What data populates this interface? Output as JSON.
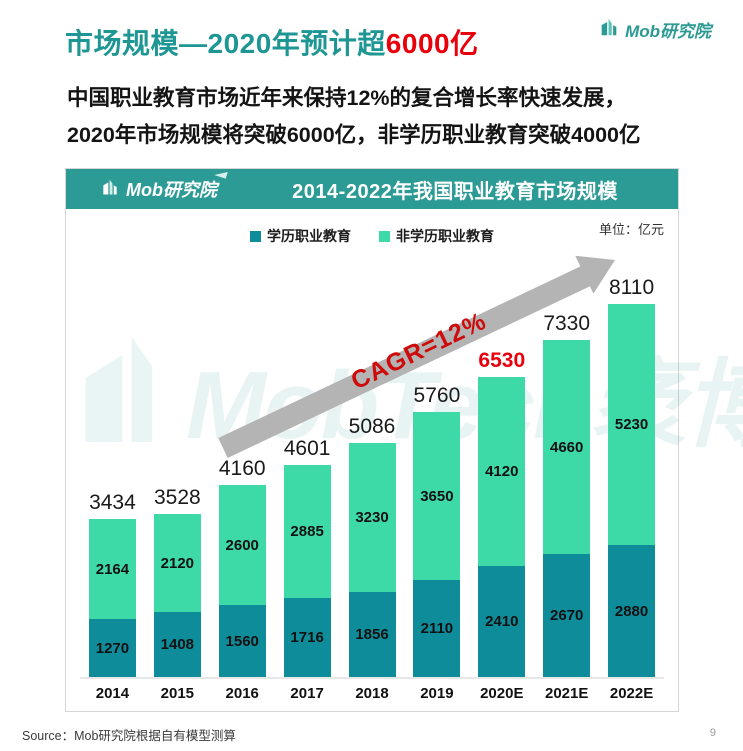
{
  "page": {
    "title_main": "市场规模—2020年预计超",
    "title_highlight": "6000亿",
    "subtitle_line1": "中国职业教育市场近年来保持12%的复合增长率快速发展，",
    "subtitle_line2": "2020年市场规模将突破6000亿，非学历职业教育突破4000亿",
    "brand": "Mob研究院",
    "source": "Source：Mob研究院根据自有模型测算",
    "page_number": "9"
  },
  "chart": {
    "header_brand": "Mob研究院",
    "header_title": "2014-2022年我国职业教育市场规模",
    "unit_label": "单位：亿元",
    "watermark": "MobTech袤博",
    "cagr_label": "CAGR=12%"
  },
  "chart_data": {
    "type": "bar",
    "stacked": true,
    "title": "2014-2022年我国职业教育市场规模",
    "unit": "亿元",
    "categories": [
      "2014",
      "2015",
      "2016",
      "2017",
      "2018",
      "2019",
      "2020E",
      "2021E",
      "2022E"
    ],
    "series": [
      {
        "name": "学历职业教育",
        "color": "#0e8c9a",
        "values": [
          1270,
          1408,
          1560,
          1716,
          1856,
          2110,
          2410,
          2670,
          2880
        ]
      },
      {
        "name": "非学历职业教育",
        "color": "#3dd9a6",
        "values": [
          2164,
          2120,
          2600,
          2885,
          3230,
          3650,
          4120,
          4660,
          5230
        ]
      }
    ],
    "totals": [
      3434,
      3528,
      4160,
      4601,
      5086,
      5760,
      6530,
      7330,
      8110
    ],
    "total_highlight_index": 6,
    "annotation": "CAGR=12%",
    "ylim": [
      0,
      8110
    ],
    "legend_position": "top",
    "grid": false
  },
  "colors": {
    "title_teal": "#1e9694",
    "highlight_red": "#e8000d",
    "header_bar": "#2d9b95",
    "series_degree": "#0e8c9a",
    "series_nondegree": "#3dd9a6",
    "arrow_gray": "#b4b4b4",
    "cagr_red": "#cf0a0a"
  }
}
